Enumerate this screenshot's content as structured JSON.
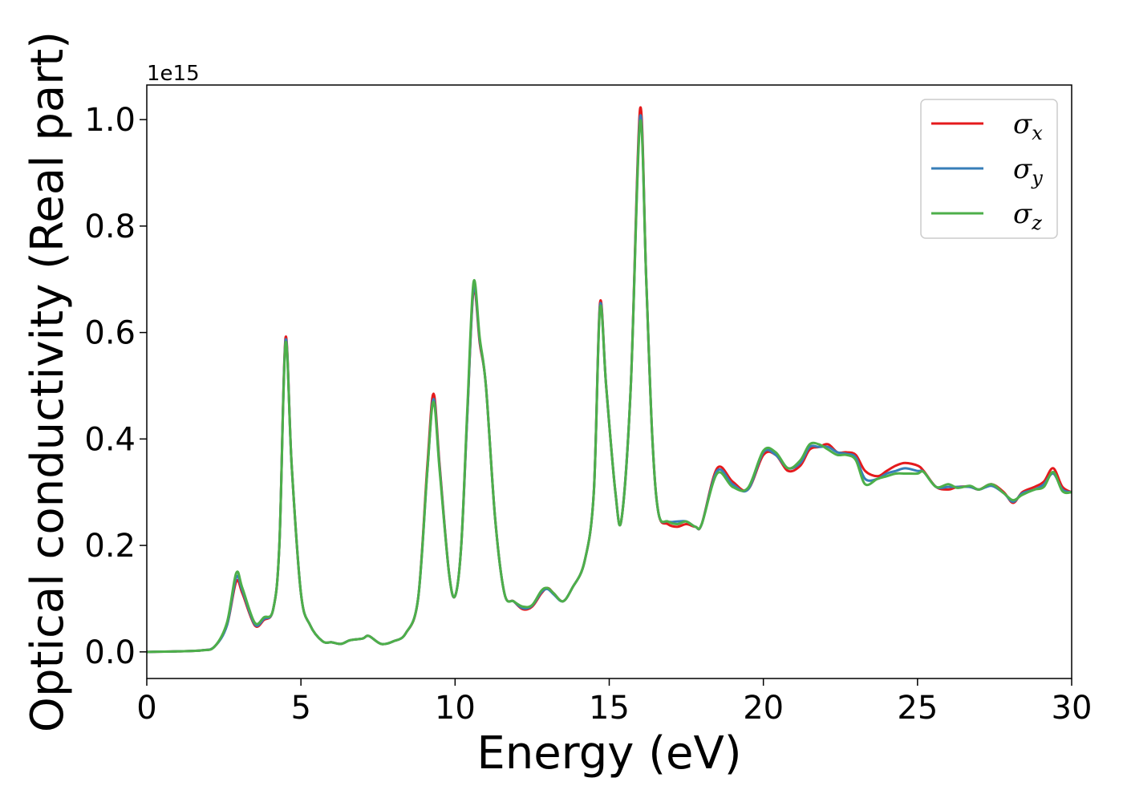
{
  "chart_data": {
    "type": "line",
    "title": "",
    "xlabel": "Energy (eV)",
    "ylabel": "Optical conductivity (Real part)",
    "y_offset_label": "1e15",
    "xlim": [
      0,
      30
    ],
    "ylim": [
      -0.05,
      1.065
    ],
    "x_ticks": [
      0,
      5,
      10,
      15,
      20,
      25,
      30
    ],
    "x_tick_labels": [
      "0",
      "5",
      "10",
      "15",
      "20",
      "25",
      "30"
    ],
    "y_ticks": [
      0.0,
      0.2,
      0.4,
      0.6,
      0.8,
      1.0
    ],
    "y_tick_labels": [
      "0.0",
      "0.2",
      "0.4",
      "0.6",
      "0.8",
      "1.0"
    ],
    "grid": false,
    "legend_position": "top-right",
    "series": [
      {
        "name": "σx",
        "label_base": "σ",
        "label_sub": "x",
        "color": "#e41a1c",
        "x": [
          0,
          1,
          1.8,
          2.2,
          2.6,
          2.9,
          3.1,
          3.5,
          3.8,
          4.1,
          4.3,
          4.5,
          4.7,
          5.0,
          5.3,
          5.7,
          6.0,
          6.3,
          6.6,
          7.0,
          7.2,
          7.6,
          8.0,
          8.4,
          8.8,
          9.1,
          9.3,
          9.5,
          9.8,
          10.0,
          10.2,
          10.4,
          10.6,
          10.8,
          11.0,
          11.3,
          11.6,
          11.9,
          12.2,
          12.5,
          12.8,
          13.0,
          13.2,
          13.5,
          13.8,
          14.2,
          14.5,
          14.7,
          14.9,
          15.2,
          15.4,
          15.7,
          16.0,
          16.2,
          16.4,
          16.6,
          16.9,
          17.2,
          17.5,
          17.8,
          18.0,
          18.5,
          19.0,
          19.5,
          20.0,
          20.4,
          20.8,
          21.2,
          21.5,
          21.8,
          22.1,
          22.4,
          22.7,
          23.0,
          23.3,
          23.7,
          24.0,
          24.3,
          24.6,
          25.0,
          25.2,
          25.6,
          26.0,
          26.3,
          26.7,
          27.0,
          27.4,
          27.8,
          28.1,
          28.4,
          28.8,
          29.1,
          29.4,
          29.7,
          30.0
        ],
        "y": [
          0,
          0.001,
          0.003,
          0.01,
          0.05,
          0.132,
          0.11,
          0.05,
          0.06,
          0.08,
          0.2,
          0.59,
          0.35,
          0.11,
          0.05,
          0.02,
          0.018,
          0.015,
          0.022,
          0.025,
          0.03,
          0.015,
          0.02,
          0.035,
          0.1,
          0.35,
          0.485,
          0.35,
          0.15,
          0.105,
          0.2,
          0.45,
          0.68,
          0.58,
          0.5,
          0.25,
          0.11,
          0.095,
          0.08,
          0.085,
          0.11,
          0.12,
          0.11,
          0.095,
          0.12,
          0.17,
          0.3,
          0.655,
          0.5,
          0.3,
          0.25,
          0.5,
          1.02,
          0.7,
          0.4,
          0.26,
          0.24,
          0.235,
          0.24,
          0.235,
          0.24,
          0.345,
          0.32,
          0.305,
          0.37,
          0.37,
          0.34,
          0.35,
          0.38,
          0.385,
          0.39,
          0.375,
          0.375,
          0.37,
          0.34,
          0.33,
          0.34,
          0.35,
          0.355,
          0.35,
          0.34,
          0.31,
          0.305,
          0.31,
          0.31,
          0.305,
          0.315,
          0.3,
          0.28,
          0.3,
          0.31,
          0.32,
          0.345,
          0.31,
          0.3
        ]
      },
      {
        "name": "σy",
        "label_base": "σ",
        "label_sub": "y",
        "color": "#377eb8",
        "x": [
          0,
          1,
          1.8,
          2.2,
          2.6,
          2.9,
          3.1,
          3.5,
          3.8,
          4.1,
          4.3,
          4.5,
          4.7,
          5.0,
          5.3,
          5.7,
          6.0,
          6.3,
          6.6,
          7.0,
          7.2,
          7.6,
          8.0,
          8.4,
          8.8,
          9.1,
          9.3,
          9.5,
          9.8,
          10.0,
          10.2,
          10.4,
          10.6,
          10.8,
          11.0,
          11.3,
          11.6,
          11.9,
          12.2,
          12.5,
          12.8,
          13.0,
          13.2,
          13.5,
          13.8,
          14.2,
          14.5,
          14.7,
          14.9,
          15.2,
          15.4,
          15.7,
          16.0,
          16.2,
          16.4,
          16.6,
          16.9,
          17.2,
          17.5,
          17.8,
          18.0,
          18.5,
          19.0,
          19.5,
          20.0,
          20.4,
          20.8,
          21.2,
          21.5,
          21.8,
          22.1,
          22.4,
          22.7,
          23.0,
          23.3,
          23.7,
          24.0,
          24.3,
          24.6,
          25.0,
          25.2,
          25.6,
          26.0,
          26.3,
          26.7,
          27.0,
          27.4,
          27.8,
          28.1,
          28.4,
          28.8,
          29.1,
          29.4,
          29.7,
          30.0
        ],
        "y": [
          0,
          0.001,
          0.003,
          0.01,
          0.05,
          0.14,
          0.115,
          0.052,
          0.062,
          0.08,
          0.2,
          0.585,
          0.35,
          0.11,
          0.05,
          0.02,
          0.018,
          0.015,
          0.022,
          0.025,
          0.03,
          0.015,
          0.02,
          0.035,
          0.1,
          0.34,
          0.475,
          0.345,
          0.15,
          0.105,
          0.2,
          0.45,
          0.685,
          0.585,
          0.5,
          0.25,
          0.11,
          0.095,
          0.082,
          0.087,
          0.112,
          0.118,
          0.108,
          0.095,
          0.12,
          0.17,
          0.3,
          0.65,
          0.5,
          0.3,
          0.25,
          0.5,
          1.005,
          0.7,
          0.4,
          0.26,
          0.245,
          0.245,
          0.245,
          0.235,
          0.24,
          0.34,
          0.315,
          0.305,
          0.375,
          0.37,
          0.345,
          0.355,
          0.385,
          0.385,
          0.385,
          0.375,
          0.372,
          0.365,
          0.325,
          0.325,
          0.335,
          0.34,
          0.345,
          0.34,
          0.338,
          0.31,
          0.31,
          0.31,
          0.31,
          0.305,
          0.312,
          0.298,
          0.282,
          0.298,
          0.305,
          0.315,
          0.335,
          0.305,
          0.3
        ]
      },
      {
        "name": "σz",
        "label_base": "σ",
        "label_sub": "z",
        "color": "#4daf4a",
        "x": [
          0,
          1,
          1.8,
          2.2,
          2.6,
          2.9,
          3.1,
          3.5,
          3.8,
          4.1,
          4.3,
          4.5,
          4.7,
          5.0,
          5.3,
          5.7,
          6.0,
          6.3,
          6.6,
          7.0,
          7.2,
          7.6,
          8.0,
          8.4,
          8.8,
          9.1,
          9.3,
          9.5,
          9.8,
          10.0,
          10.2,
          10.4,
          10.6,
          10.8,
          11.0,
          11.3,
          11.6,
          11.9,
          12.2,
          12.5,
          12.8,
          13.0,
          13.2,
          13.5,
          13.8,
          14.2,
          14.5,
          14.7,
          14.9,
          15.2,
          15.4,
          15.7,
          16.0,
          16.2,
          16.4,
          16.6,
          16.9,
          17.2,
          17.5,
          17.8,
          18.0,
          18.5,
          19.0,
          19.5,
          20.0,
          20.4,
          20.8,
          21.2,
          21.5,
          21.8,
          22.1,
          22.4,
          22.7,
          23.0,
          23.3,
          23.7,
          24.0,
          24.3,
          24.6,
          25.0,
          25.2,
          25.6,
          26.0,
          26.3,
          26.7,
          27.0,
          27.4,
          27.8,
          28.1,
          28.4,
          28.8,
          29.1,
          29.4,
          29.7,
          30.0
        ],
        "y": [
          0,
          0.001,
          0.003,
          0.01,
          0.055,
          0.148,
          0.12,
          0.055,
          0.065,
          0.08,
          0.2,
          0.58,
          0.35,
          0.11,
          0.05,
          0.02,
          0.018,
          0.015,
          0.022,
          0.025,
          0.03,
          0.015,
          0.02,
          0.035,
          0.1,
          0.34,
          0.47,
          0.34,
          0.15,
          0.105,
          0.2,
          0.46,
          0.695,
          0.59,
          0.5,
          0.25,
          0.11,
          0.095,
          0.085,
          0.088,
          0.115,
          0.12,
          0.11,
          0.095,
          0.12,
          0.17,
          0.3,
          0.645,
          0.5,
          0.3,
          0.25,
          0.5,
          0.995,
          0.7,
          0.4,
          0.26,
          0.245,
          0.24,
          0.245,
          0.235,
          0.24,
          0.335,
          0.31,
          0.308,
          0.378,
          0.375,
          0.345,
          0.36,
          0.39,
          0.39,
          0.38,
          0.37,
          0.37,
          0.36,
          0.315,
          0.325,
          0.33,
          0.335,
          0.335,
          0.335,
          0.338,
          0.31,
          0.315,
          0.308,
          0.312,
          0.305,
          0.315,
          0.298,
          0.285,
          0.295,
          0.305,
          0.31,
          0.338,
          0.302,
          0.3
        ]
      }
    ]
  }
}
